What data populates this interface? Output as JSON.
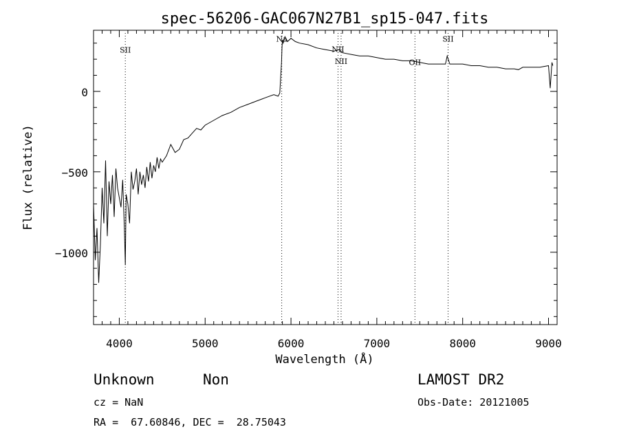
{
  "chart_data": {
    "type": "line",
    "title": "spec-56206-GAC067N27B1_sp15-047.fits",
    "xlabel": "Wavelength (Å)",
    "ylabel": "Flux (relative)",
    "xlim": [
      3700,
      9100
    ],
    "ylim": [
      -1450,
      380
    ],
    "x_ticks": [
      4000,
      5000,
      6000,
      7000,
      8000,
      9000
    ],
    "x_tick_labels": [
      "4000",
      "5000",
      "6000",
      "7000",
      "8000",
      "9000"
    ],
    "y_ticks": [
      0,
      -500,
      -1000
    ],
    "y_tick_labels": [
      "0",
      "−500",
      "−1000"
    ],
    "series": [
      {
        "x": [
          3700,
          3720,
          3740,
          3760,
          3780,
          3800,
          3820,
          3840,
          3860,
          3880,
          3900,
          3920,
          3940,
          3960,
          3980,
          4000,
          4020,
          4040,
          4060,
          4070,
          4080,
          4100,
          4120,
          4140,
          4160,
          4180,
          4200,
          4220,
          4240,
          4260,
          4280,
          4300,
          4320,
          4340,
          4360,
          4380,
          4400,
          4420,
          4440,
          4460,
          4480,
          4500,
          4550,
          4600,
          4650,
          4700,
          4750,
          4800,
          4850,
          4900,
          4950,
          5000,
          5100,
          5200,
          5300,
          5400,
          5500,
          5600,
          5700,
          5800,
          5850,
          5870,
          5890,
          5895,
          5900,
          5910,
          5930,
          5960,
          6000,
          6050,
          6100,
          6200,
          6300,
          6400,
          6500,
          6560,
          6600,
          6700,
          6800,
          6900,
          7000,
          7100,
          7200,
          7300,
          7400,
          7500,
          7600,
          7700,
          7800,
          7820,
          7850,
          7900,
          8000,
          8100,
          8200,
          8300,
          8400,
          8500,
          8600,
          8650,
          8700,
          8800,
          8900,
          9000,
          9020,
          9040,
          9050
        ],
        "y": [
          -700,
          -1050,
          -850,
          -1190,
          -950,
          -600,
          -820,
          -430,
          -900,
          -560,
          -700,
          -520,
          -780,
          -480,
          -600,
          -660,
          -720,
          -550,
          -860,
          -1080,
          -640,
          -700,
          -820,
          -500,
          -610,
          -560,
          -480,
          -640,
          -500,
          -580,
          -520,
          -600,
          -470,
          -560,
          -440,
          -540,
          -460,
          -500,
          -410,
          -480,
          -420,
          -440,
          -400,
          -330,
          -380,
          -360,
          -300,
          -290,
          -260,
          -230,
          -240,
          -210,
          -180,
          -150,
          -130,
          -100,
          -80,
          -60,
          -40,
          -20,
          -30,
          -10,
          180,
          270,
          320,
          300,
          340,
          310,
          330,
          310,
          300,
          290,
          270,
          260,
          250,
          260,
          240,
          230,
          220,
          220,
          210,
          200,
          200,
          190,
          190,
          180,
          170,
          170,
          170,
          220,
          170,
          170,
          170,
          160,
          160,
          150,
          150,
          140,
          140,
          135,
          150,
          150,
          150,
          160,
          20,
          180,
          160
        ]
      }
    ],
    "emission_lines": [
      {
        "label": "SII",
        "x": 4070,
        "label_y": 240
      },
      {
        "label": "Na",
        "x": 5892,
        "label_y": 310
      },
      {
        "label": "NII",
        "x": 6548,
        "label_y": 245
      },
      {
        "label": "NII",
        "x": 6584,
        "label_y": 170
      },
      {
        "label": "OII",
        "x": 7444,
        "label_y": 165
      },
      {
        "label": "SII",
        "x": 7830,
        "label_y": 310
      }
    ]
  },
  "info": {
    "class_label": "Unknown",
    "subclass_label": "Non",
    "survey": "LAMOST DR2",
    "cz": "cz = NaN",
    "obs_date": "Obs-Date: 20121005",
    "coords": "RA =  67.60846, DEC =  28.75043"
  }
}
